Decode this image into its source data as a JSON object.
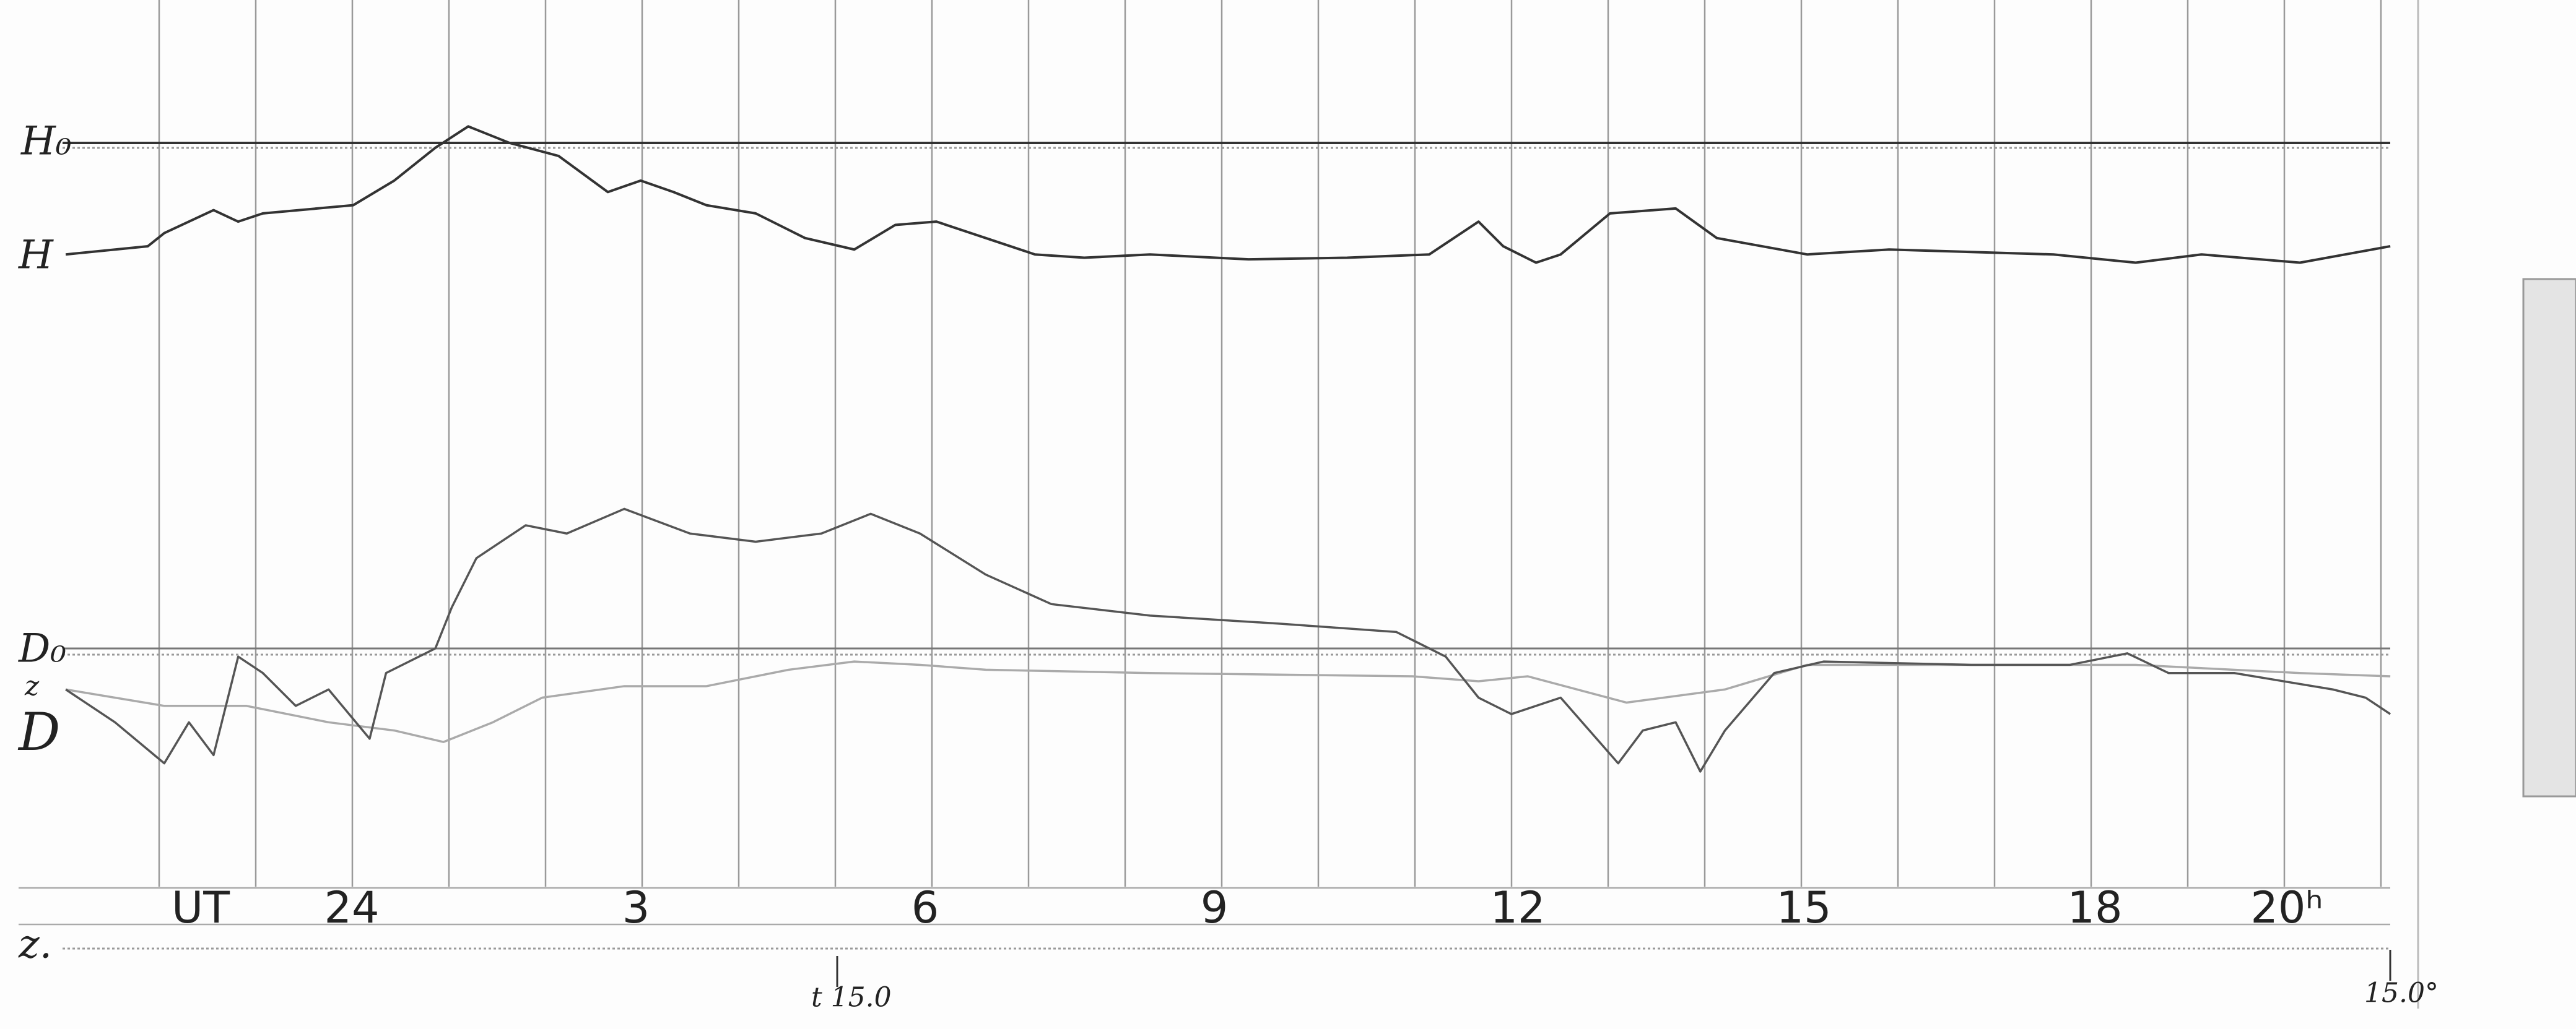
{
  "labels": {
    "h0": "H₀",
    "h": "H",
    "d0": "D₀",
    "z_trace": "z",
    "d": "D",
    "z0": "z."
  },
  "time_marks": {
    "ut": "UT",
    "hours": [
      "24",
      "3",
      "6",
      "9",
      "12",
      "15",
      "18",
      "20ʰ"
    ]
  },
  "scale_notes": {
    "temperature_mid": "t 15.0",
    "temperature_end": "15.0°"
  }
}
